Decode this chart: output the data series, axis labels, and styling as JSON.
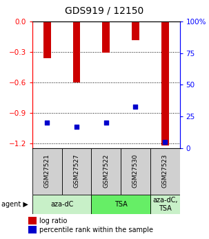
{
  "title": "GDS919 / 12150",
  "samples": [
    "GSM27521",
    "GSM27527",
    "GSM27522",
    "GSM27530",
    "GSM27523"
  ],
  "log_ratios": [
    -0.36,
    -0.6,
    -0.305,
    -0.185,
    -1.22
  ],
  "percentile_ranks": [
    20,
    17,
    20,
    33,
    5
  ],
  "ylim_left": [
    -1.25,
    0.0
  ],
  "ylim_right": [
    0,
    100
  ],
  "yticks_left": [
    0,
    -0.3,
    -0.6,
    -0.9,
    -1.2
  ],
  "yticks_right": [
    0,
    25,
    50,
    75,
    100
  ],
  "bar_color": "#cc0000",
  "dot_color": "#0000cc",
  "bar_width": 0.25,
  "legend_log_ratio": "log ratio",
  "legend_percentile": "percentile rank within the sample",
  "group_defs": [
    {
      "label": "aza-dC",
      "start": 0,
      "end": 2,
      "color": "#c8f0c8"
    },
    {
      "label": "TSA",
      "start": 2,
      "end": 4,
      "color": "#66ee66"
    },
    {
      "label": "aza-dC,\nTSA",
      "start": 4,
      "end": 5,
      "color": "#c8f0c8"
    }
  ],
  "sample_box_color": "#d0d0d0"
}
